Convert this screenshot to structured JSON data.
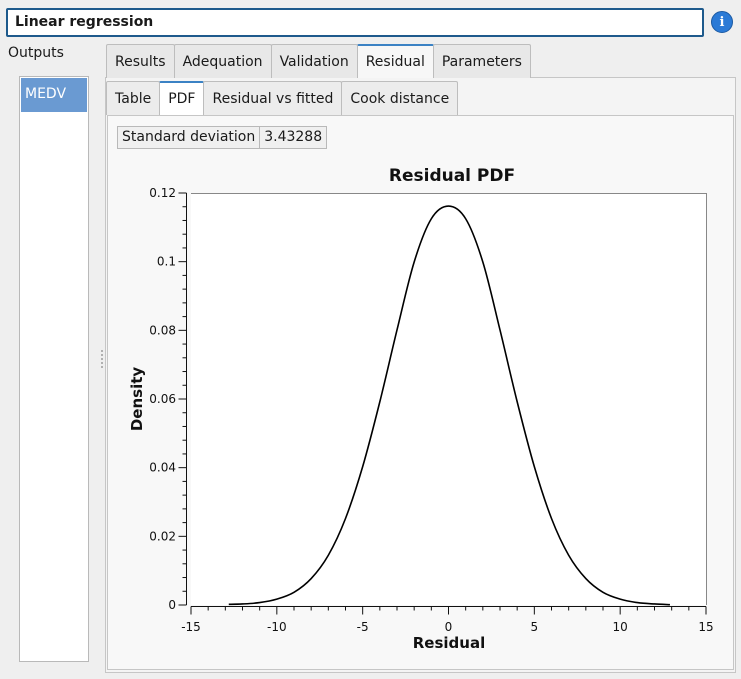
{
  "header": {
    "title": "Linear regression",
    "info_icon": "info-icon"
  },
  "outputs": {
    "label": "Outputs",
    "items": [
      "MEDV"
    ]
  },
  "main_tabs": [
    "Results",
    "Adequation",
    "Validation",
    "Residual",
    "Parameters"
  ],
  "main_tab_active": "Residual",
  "sub_tabs": [
    "Table",
    "PDF",
    "Residual vs fitted",
    "Cook distance"
  ],
  "sub_tab_active": "PDF",
  "std_dev": {
    "label": "Standard deviation",
    "value": "3.43288"
  },
  "chart_data": {
    "type": "line",
    "title": "Residual PDF",
    "xlabel": "Residual",
    "ylabel": "Density",
    "xlim": [
      -15,
      15
    ],
    "ylim": [
      0,
      0.12
    ],
    "xticks": [
      "-15",
      "-10",
      "-5",
      "0",
      "5",
      "10",
      "15"
    ],
    "yticks": [
      "0",
      "0.02",
      "0.04",
      "0.06",
      "0.08",
      "0.1",
      "0.12"
    ],
    "grid": false,
    "series": [
      {
        "color": "#000000",
        "x": [
          -12.8,
          -12,
          -11,
          -10,
          -9,
          -8,
          -7,
          -6,
          -5,
          -4,
          -3,
          -2,
          -1,
          0,
          1,
          2,
          3,
          4,
          5,
          6,
          7,
          8,
          9,
          10,
          11,
          12,
          12.9
        ],
        "y": [
          0.0002,
          0.0003,
          0.0007,
          0.0017,
          0.0037,
          0.0077,
          0.0145,
          0.0252,
          0.0403,
          0.0592,
          0.0801,
          0.0999,
          0.1125,
          0.1162,
          0.1125,
          0.0999,
          0.0801,
          0.0592,
          0.0403,
          0.0252,
          0.0145,
          0.0077,
          0.0037,
          0.0017,
          0.0007,
          0.0003,
          0.0001
        ]
      }
    ]
  }
}
